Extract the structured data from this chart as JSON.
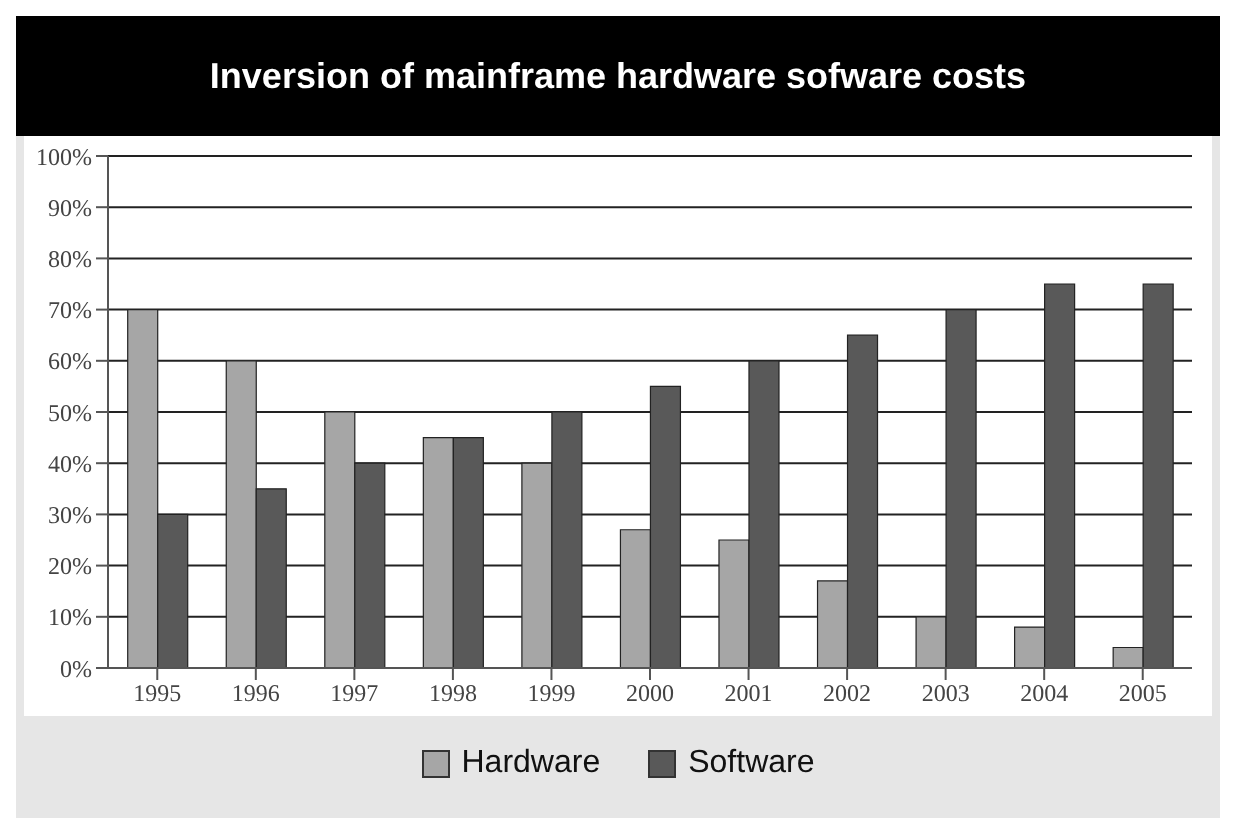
{
  "chart_data": {
    "type": "bar",
    "title": "Inversion of mainframe hardware sofware costs",
    "categories": [
      "1995",
      "1996",
      "1997",
      "1998",
      "1999",
      "2000",
      "2001",
      "2002",
      "2003",
      "2004",
      "2005"
    ],
    "series": [
      {
        "name": "Hardware",
        "color": "#a6a6a6",
        "values": [
          70,
          60,
          50,
          45,
          40,
          27,
          25,
          17,
          10,
          8,
          4
        ]
      },
      {
        "name": "Software",
        "color": "#595959",
        "values": [
          30,
          35,
          40,
          45,
          50,
          55,
          60,
          65,
          70,
          75,
          75
        ]
      }
    ],
    "ylim": [
      0,
      100
    ],
    "yticks": [
      {
        "value": 0,
        "label": "0%"
      },
      {
        "value": 10,
        "label": "10%"
      },
      {
        "value": 20,
        "label": "20%"
      },
      {
        "value": 30,
        "label": "30%"
      },
      {
        "value": 40,
        "label": "40%"
      },
      {
        "value": 50,
        "label": "50%"
      },
      {
        "value": 60,
        "label": "60%"
      },
      {
        "value": 70,
        "label": "70%"
      },
      {
        "value": 80,
        "label": "80%"
      },
      {
        "value": 90,
        "label": "90%"
      },
      {
        "value": 100,
        "label": "100%"
      }
    ],
    "grid": "y",
    "legend": "bottom"
  }
}
